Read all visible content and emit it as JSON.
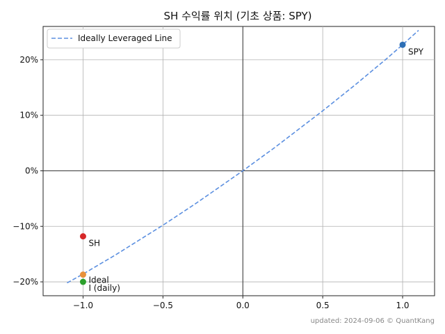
{
  "chart_data": {
    "type": "scatter",
    "title": "SH 수익률 위치 (기초 상품: SPY)",
    "xlabel": "",
    "ylabel": "",
    "xlim": [
      -1.25,
      1.2
    ],
    "ylim": [
      -0.225,
      0.26
    ],
    "x_ticks": [
      -1.0,
      -0.5,
      0.0,
      0.5,
      1.0
    ],
    "x_tick_labels": [
      "−1.0",
      "−0.5",
      "0.0",
      "0.5",
      "1.0"
    ],
    "y_ticks": [
      -0.2,
      -0.1,
      0.0,
      0.1,
      0.2
    ],
    "y_tick_labels": [
      "−20%",
      "−10%",
      "0%",
      "10%",
      "20%"
    ],
    "grid": true,
    "legend_position": "top-left",
    "colors": {
      "line": "#5b8fe0",
      "spy": "#2e6fb5",
      "sh": "#d62728",
      "ideal": "#e8913a",
      "ideal_daily": "#2ca02c"
    },
    "line": {
      "name": "Ideally Leveraged Line",
      "style": "dashed",
      "x": [
        -1.1,
        -1.0,
        -0.9,
        -0.8,
        -0.7,
        -0.6,
        -0.5,
        -0.4,
        -0.3,
        -0.2,
        -0.1,
        0.0,
        0.1,
        0.2,
        0.3,
        0.4,
        0.5,
        0.6,
        0.7,
        0.8,
        0.9,
        1.0,
        1.1
      ],
      "y": [
        -0.202,
        -0.186,
        -0.169,
        -0.152,
        -0.134,
        -0.116,
        -0.098,
        -0.079,
        -0.06,
        -0.04,
        -0.02,
        0.0,
        0.021,
        0.042,
        0.064,
        0.086,
        0.108,
        0.131,
        0.154,
        0.178,
        0.202,
        0.227,
        0.253
      ]
    },
    "points": [
      {
        "label": "SPY",
        "x": 1.0,
        "y": 0.227,
        "color_key": "spy"
      },
      {
        "label": "SH",
        "x": -1.0,
        "y": -0.118,
        "color_key": "sh"
      },
      {
        "label": "Ideal",
        "x": -1.0,
        "y": -0.187,
        "color_key": "ideal"
      },
      {
        "label": "I (daily)",
        "x": -1.0,
        "y": -0.2,
        "color_key": "ideal_daily"
      }
    ]
  },
  "footer": "updated: 2024-09-06 © QuantKang"
}
